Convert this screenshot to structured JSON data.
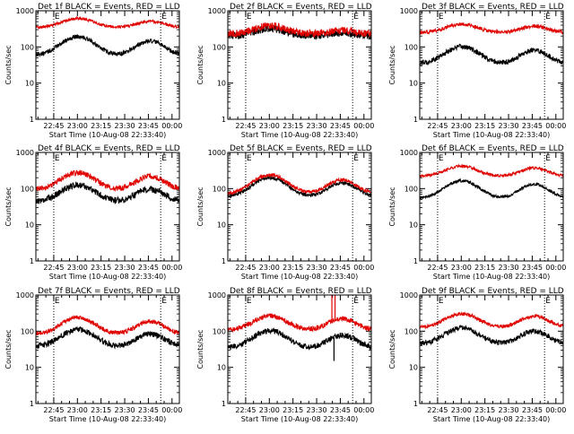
{
  "figure": {
    "background": "#ffffff",
    "axis_color": "#000000",
    "events_color": "#000000",
    "lld_color": "#e00000"
  },
  "chart_data": [
    {
      "type": "line",
      "title": "Det 1f BLACK = Events, RED = LLD",
      "xlabel": "Start Time (10-Aug-08 22:33:40)",
      "ylabel": "Counts/sec",
      "yscale": "log",
      "ylim": [
        1,
        1000
      ],
      "xlim_seconds": [
        0,
        5460
      ],
      "yticks": [
        "1",
        "10",
        "100",
        "1000"
      ],
      "xticks": [
        {
          "label": "22:45",
          "t": 680
        },
        {
          "label": "23:00",
          "t": 1580
        },
        {
          "label": "23:15",
          "t": 2480
        },
        {
          "label": "23:30",
          "t": 3380
        },
        {
          "label": "23:45",
          "t": 4280
        },
        {
          "label": "00:00",
          "t": 5180
        }
      ],
      "markers": [
        {
          "label": "E",
          "t": 680
        },
        {
          "label": "E",
          "t": 4750
        }
      ],
      "series": [
        {
          "name": "Events",
          "color": "#000000",
          "base": 60,
          "amp1": 3.2,
          "amp2": 2.4,
          "noise": 0.06,
          "spikes": []
        },
        {
          "name": "LLD",
          "color": "#e00000",
          "base": 350,
          "amp1": 1.75,
          "amp2": 1.45,
          "noise": 0.04,
          "spikes": []
        }
      ]
    },
    {
      "type": "line",
      "title": "Det 2f BLACK = Events, RED = LLD",
      "xlabel": "Start Time (10-Aug-08 22:33:40)",
      "ylabel": "Counts/sec",
      "yscale": "log",
      "ylim": [
        1,
        1000
      ],
      "xlim_seconds": [
        0,
        5460
      ],
      "yticks": [
        "1",
        "10",
        "100",
        "1000"
      ],
      "xticks": [
        {
          "label": "22:45",
          "t": 680
        },
        {
          "label": "23:00",
          "t": 1580
        },
        {
          "label": "23:15",
          "t": 2480
        },
        {
          "label": "23:30",
          "t": 3380
        },
        {
          "label": "23:45",
          "t": 4280
        },
        {
          "label": "00:00",
          "t": 5180
        }
      ],
      "markers": [
        {
          "label": "E",
          "t": 680
        },
        {
          "label": "E",
          "t": 4750
        }
      ],
      "series": [
        {
          "name": "Events",
          "color": "#000000",
          "base": 200,
          "amp1": 1.6,
          "amp2": 1.2,
          "noise": 0.1,
          "spikes": []
        },
        {
          "name": "LLD",
          "color": "#e00000",
          "base": 230,
          "amp1": 1.7,
          "amp2": 1.25,
          "noise": 0.1,
          "spikes": []
        }
      ]
    },
    {
      "type": "line",
      "title": "Det 3f BLACK = Events, RED = LLD",
      "xlabel": "Start Time (10-Aug-08 22:33:40)",
      "ylabel": "Counts/sec",
      "yscale": "log",
      "ylim": [
        1,
        1000
      ],
      "xlim_seconds": [
        0,
        5460
      ],
      "yticks": [
        "1",
        "10",
        "100",
        "1000"
      ],
      "xticks": [
        {
          "label": "22:45",
          "t": 680
        },
        {
          "label": "23:00",
          "t": 1580
        },
        {
          "label": "23:15",
          "t": 2480
        },
        {
          "label": "23:30",
          "t": 3380
        },
        {
          "label": "23:45",
          "t": 4280
        },
        {
          "label": "00:00",
          "t": 5180
        }
      ],
      "markers": [
        {
          "label": "E",
          "t": 680
        },
        {
          "label": "E",
          "t": 4750
        }
      ],
      "series": [
        {
          "name": "Events",
          "color": "#000000",
          "base": 35,
          "amp1": 2.9,
          "amp2": 2.3,
          "noise": 0.07,
          "spikes": []
        },
        {
          "name": "LLD",
          "color": "#e00000",
          "base": 250,
          "amp1": 1.7,
          "amp2": 1.5,
          "noise": 0.05,
          "spikes": []
        }
      ]
    },
    {
      "type": "line",
      "title": "Det 4f BLACK = Events, RED = LLD",
      "xlabel": "Start Time (10-Aug-08 22:33:40)",
      "ylabel": "Counts/sec",
      "yscale": "log",
      "ylim": [
        1,
        1000
      ],
      "xlim_seconds": [
        0,
        5460
      ],
      "yticks": [
        "1",
        "10",
        "100",
        "1000"
      ],
      "xticks": [
        {
          "label": "22:45",
          "t": 680
        },
        {
          "label": "23:00",
          "t": 1580
        },
        {
          "label": "23:15",
          "t": 2480
        },
        {
          "label": "23:30",
          "t": 3380
        },
        {
          "label": "23:45",
          "t": 4280
        },
        {
          "label": "00:00",
          "t": 5180
        }
      ],
      "markers": [
        {
          "label": "E",
          "t": 680
        },
        {
          "label": "E",
          "t": 4750
        }
      ],
      "series": [
        {
          "name": "Events",
          "color": "#000000",
          "base": 45,
          "amp1": 2.8,
          "amp2": 2.1,
          "noise": 0.09,
          "spikes": []
        },
        {
          "name": "LLD",
          "color": "#e00000",
          "base": 95,
          "amp1": 2.9,
          "amp2": 2.3,
          "noise": 0.08,
          "spikes": []
        }
      ]
    },
    {
      "type": "line",
      "title": "Det 5f BLACK = Events, RED = LLD",
      "xlabel": "Start Time (10-Aug-08 22:33:40)",
      "ylabel": "Counts/sec",
      "yscale": "log",
      "ylim": [
        1,
        1000
      ],
      "xlim_seconds": [
        0,
        5460
      ],
      "yticks": [
        "1",
        "10",
        "100",
        "1000"
      ],
      "xticks": [
        {
          "label": "22:45",
          "t": 680
        },
        {
          "label": "23:00",
          "t": 1580
        },
        {
          "label": "23:15",
          "t": 2480
        },
        {
          "label": "23:30",
          "t": 3380
        },
        {
          "label": "23:45",
          "t": 4280
        },
        {
          "label": "00:00",
          "t": 5180
        }
      ],
      "markers": [
        {
          "label": "E",
          "t": 680
        },
        {
          "label": "E",
          "t": 4750
        }
      ],
      "series": [
        {
          "name": "Events",
          "color": "#000000",
          "base": 62,
          "amp1": 3.2,
          "amp2": 2.3,
          "noise": 0.05,
          "spikes": []
        },
        {
          "name": "LLD",
          "color": "#e00000",
          "base": 75,
          "amp1": 3.2,
          "amp2": 2.3,
          "noise": 0.05,
          "spikes": []
        }
      ]
    },
    {
      "type": "line",
      "title": "Det 6f BLACK = Events, RED = LLD",
      "xlabel": "Start Time (10-Aug-08 22:33:40)",
      "ylabel": "Counts/sec",
      "yscale": "log",
      "ylim": [
        1,
        1000
      ],
      "xlim_seconds": [
        0,
        5460
      ],
      "yticks": [
        "1",
        "10",
        "100",
        "1000"
      ],
      "xticks": [
        {
          "label": "22:45",
          "t": 680
        },
        {
          "label": "23:00",
          "t": 1580
        },
        {
          "label": "23:15",
          "t": 2480
        },
        {
          "label": "23:30",
          "t": 3380
        },
        {
          "label": "23:45",
          "t": 4280
        },
        {
          "label": "00:00",
          "t": 5180
        }
      ],
      "markers": [
        {
          "label": "E",
          "t": 680
        },
        {
          "label": "E",
          "t": 4750
        }
      ],
      "series": [
        {
          "name": "Events",
          "color": "#000000",
          "base": 55,
          "amp1": 3.0,
          "amp2": 2.4,
          "noise": 0.04,
          "spikes": []
        },
        {
          "name": "LLD",
          "color": "#e00000",
          "base": 220,
          "amp1": 1.9,
          "amp2": 1.7,
          "noise": 0.04,
          "spikes": []
        }
      ]
    },
    {
      "type": "line",
      "title": "Det 7f BLACK = Events, RED = LLD",
      "xlabel": "Start Time (10-Aug-08 22:33:40)",
      "ylabel": "Counts/sec",
      "yscale": "log",
      "ylim": [
        1,
        1000
      ],
      "xlim_seconds": [
        0,
        5460
      ],
      "yticks": [
        "1",
        "10",
        "100",
        "1000"
      ],
      "xticks": [
        {
          "label": "22:45",
          "t": 680
        },
        {
          "label": "23:00",
          "t": 1580
        },
        {
          "label": "23:15",
          "t": 2480
        },
        {
          "label": "23:30",
          "t": 3380
        },
        {
          "label": "23:45",
          "t": 4280
        },
        {
          "label": "00:00",
          "t": 5180
        }
      ],
      "markers": [
        {
          "label": "E",
          "t": 680
        },
        {
          "label": "E",
          "t": 4750
        }
      ],
      "series": [
        {
          "name": "Events",
          "color": "#000000",
          "base": 38,
          "amp1": 2.9,
          "amp2": 2.2,
          "noise": 0.08,
          "spikes": []
        },
        {
          "name": "LLD",
          "color": "#e00000",
          "base": 85,
          "amp1": 2.8,
          "amp2": 2.2,
          "noise": 0.06,
          "spikes": []
        }
      ]
    },
    {
      "type": "line",
      "title": "Det 8f BLACK = Events, RED = LLD",
      "xlabel": "Start Time (10-Aug-08 22:33:40)",
      "ylabel": "Counts/sec",
      "yscale": "log",
      "ylim": [
        1,
        1000
      ],
      "xlim_seconds": [
        0,
        5460
      ],
      "yticks": [
        "1",
        "10",
        "100",
        "1000"
      ],
      "xticks": [
        {
          "label": "22:45",
          "t": 680
        },
        {
          "label": "23:00",
          "t": 1580
        },
        {
          "label": "23:15",
          "t": 2480
        },
        {
          "label": "23:30",
          "t": 3380
        },
        {
          "label": "23:45",
          "t": 4280
        },
        {
          "label": "00:00",
          "t": 5180
        }
      ],
      "markers": [
        {
          "label": "E",
          "t": 680
        },
        {
          "label": "E",
          "t": 4750
        }
      ],
      "series": [
        {
          "name": "Events",
          "color": "#000000",
          "base": 35,
          "amp1": 2.9,
          "amp2": 2.2,
          "noise": 0.08,
          "spikes": [
            {
              "t": 4040,
              "value": 15
            }
          ]
        },
        {
          "name": "LLD",
          "color": "#e00000",
          "base": 110,
          "amp1": 2.4,
          "amp2": 2.0,
          "noise": 0.07,
          "spikes": [
            {
              "t": 3960,
              "value": 2000
            },
            {
              "t": 4080,
              "value": 2000
            }
          ]
        }
      ]
    },
    {
      "type": "line",
      "title": "Det 9f BLACK = Events, RED = LLD",
      "xlabel": "Start Time (10-Aug-08 22:33:40)",
      "ylabel": "Counts/sec",
      "yscale": "log",
      "ylim": [
        1,
        1000
      ],
      "xlim_seconds": [
        0,
        5460
      ],
      "yticks": [
        "1",
        "10",
        "100",
        "1000"
      ],
      "xticks": [
        {
          "label": "22:45",
          "t": 680
        },
        {
          "label": "23:00",
          "t": 1580
        },
        {
          "label": "23:15",
          "t": 2480
        },
        {
          "label": "23:30",
          "t": 3380
        },
        {
          "label": "23:45",
          "t": 4280
        },
        {
          "label": "00:00",
          "t": 5180
        }
      ],
      "markers": [
        {
          "label": "E",
          "t": 680
        },
        {
          "label": "E",
          "t": 4750
        }
      ],
      "series": [
        {
          "name": "Events",
          "color": "#000000",
          "base": 45,
          "amp1": 2.7,
          "amp2": 2.2,
          "noise": 0.07,
          "spikes": []
        },
        {
          "name": "LLD",
          "color": "#e00000",
          "base": 130,
          "amp1": 2.3,
          "amp2": 2.0,
          "noise": 0.05,
          "spikes": []
        }
      ]
    }
  ]
}
